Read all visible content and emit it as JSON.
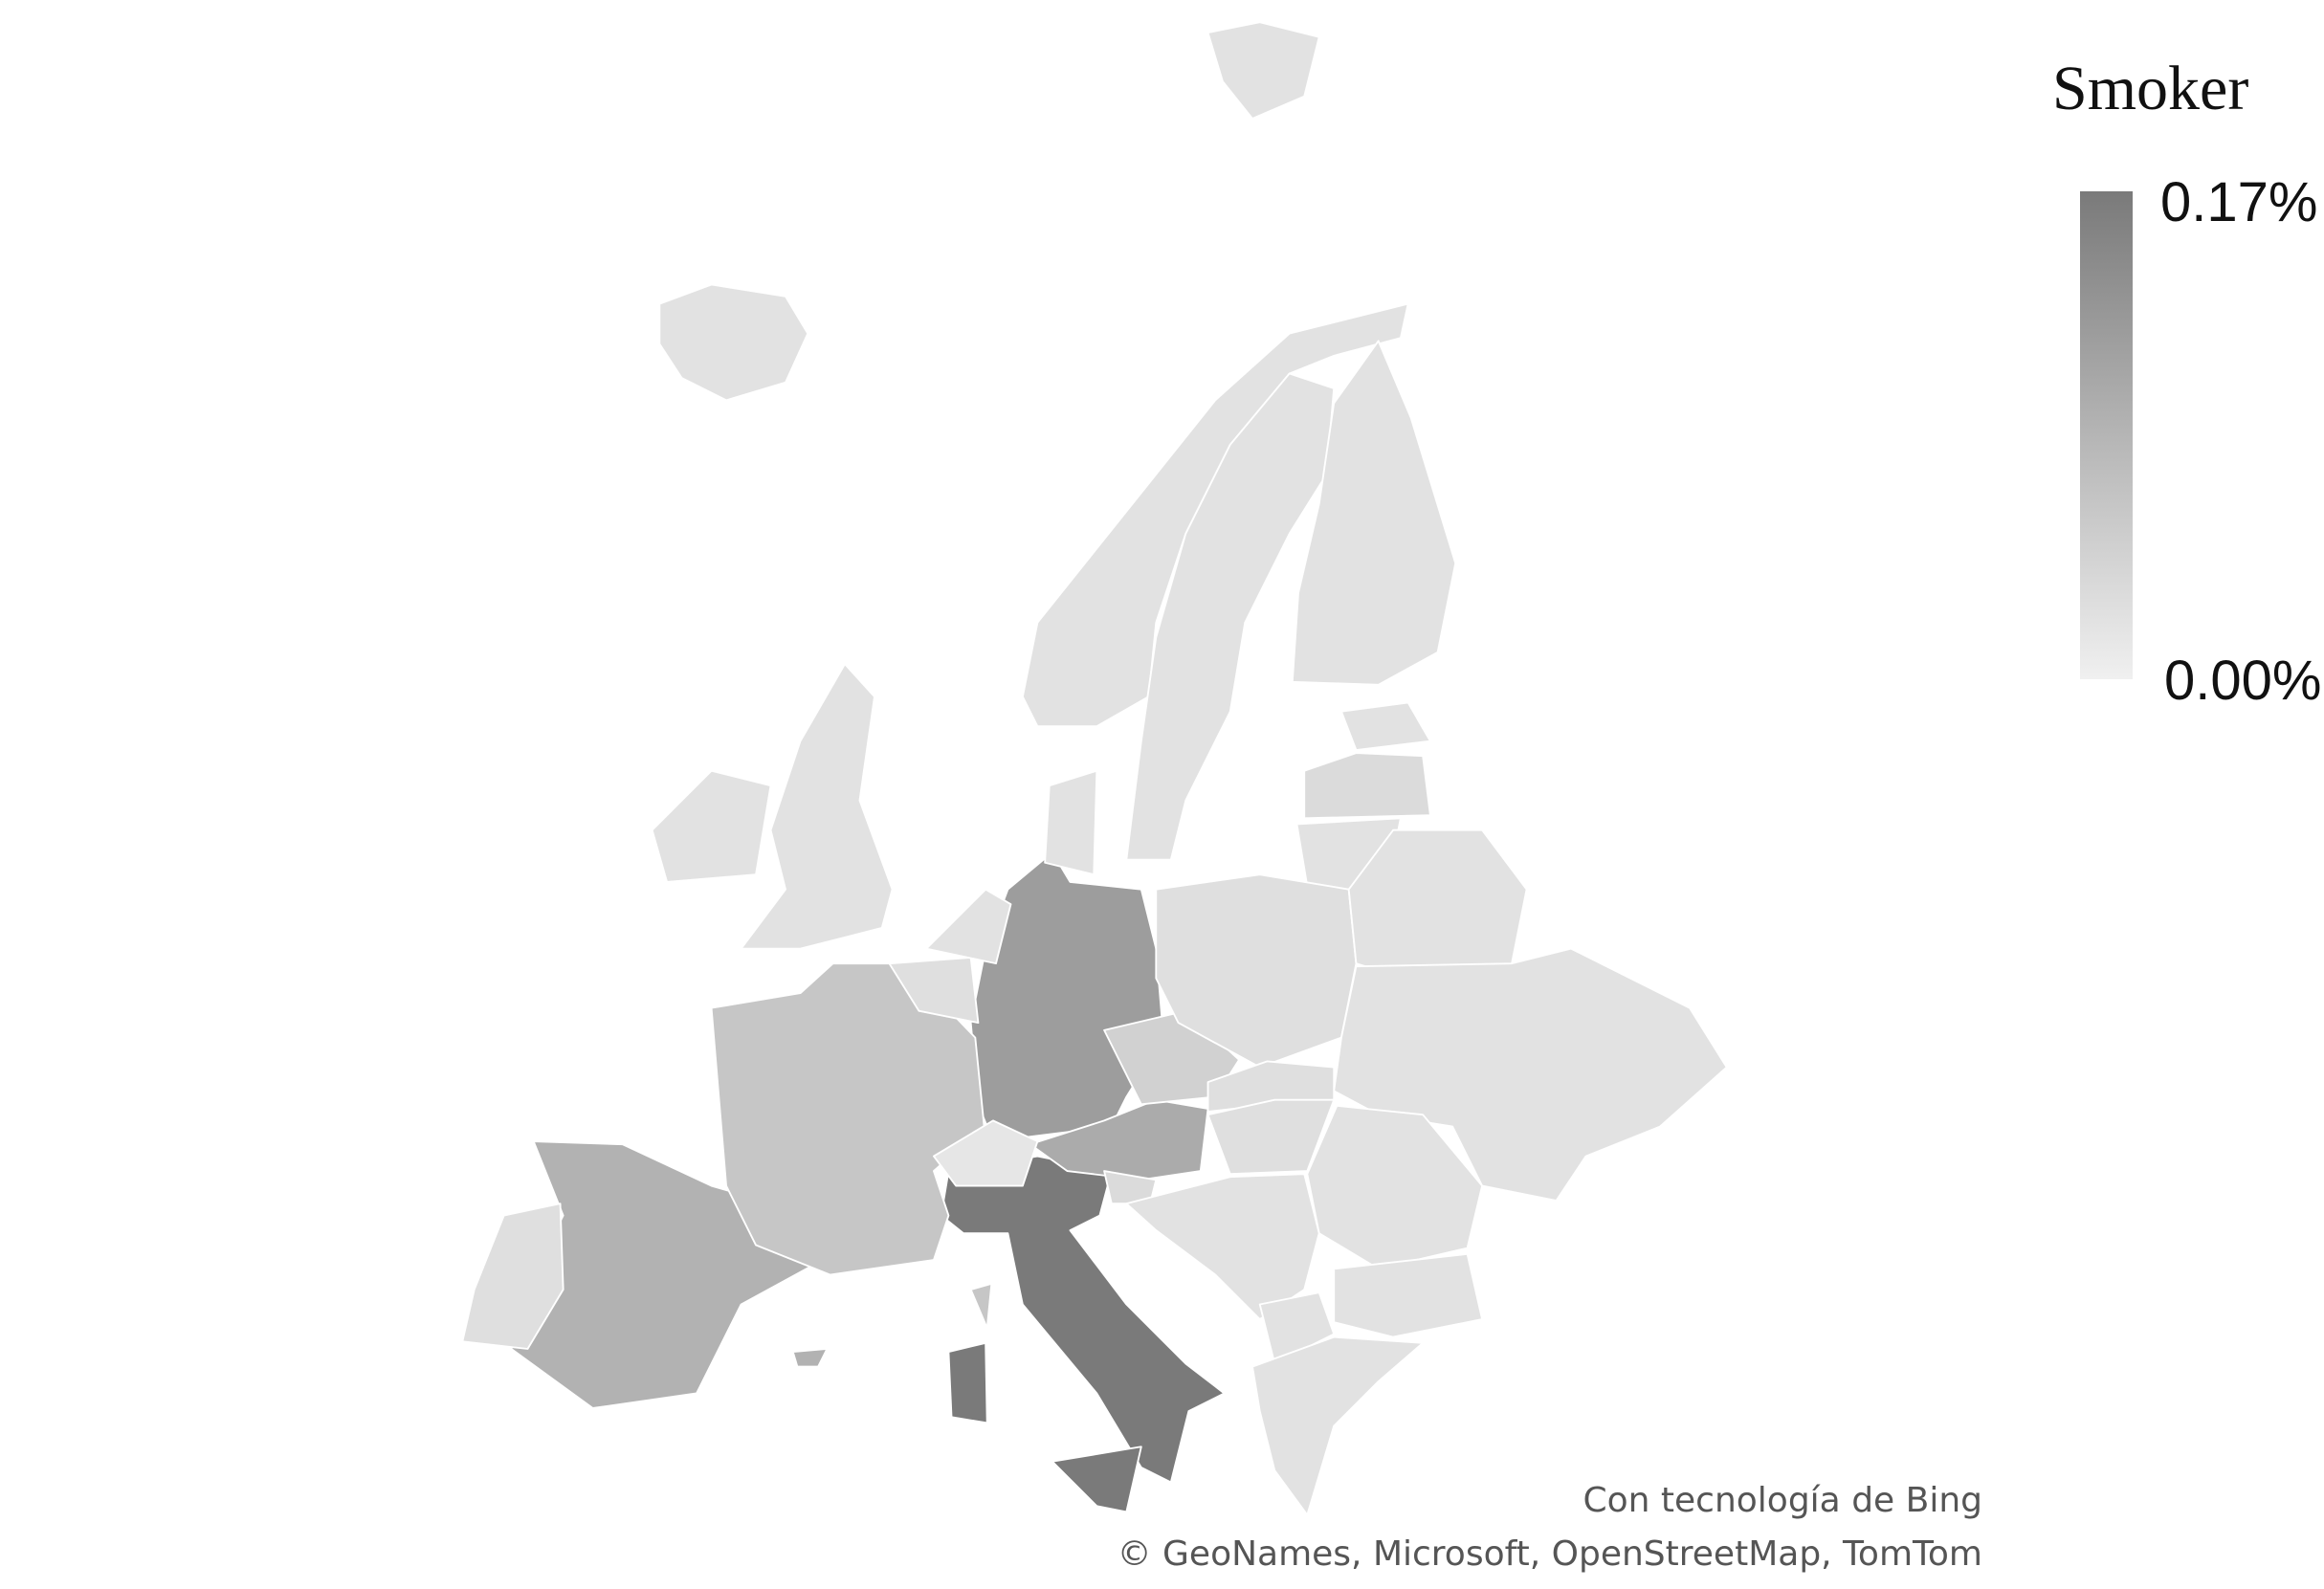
{
  "chart_data": {
    "type": "choropleth",
    "legend": {
      "title": "Smoker",
      "max_label": "0.17%",
      "min_label": "0.00%",
      "range": [
        0,
        0.17
      ],
      "unit": "%",
      "color_max": "#7a7a7a",
      "color_min": "#f0f0f0",
      "placement": "top-right"
    },
    "regions": {
      "italy": 0.17,
      "germany": 0.12,
      "austria": 0.1,
      "spain": 0.09,
      "france": 0.06,
      "czechia": 0.045,
      "portugal": 0.025,
      "switzerland": 0.015,
      "belgium": 0.025,
      "netherlands": 0.02,
      "united_kingdom": 0.02,
      "ireland": 0.02,
      "iceland": 0.02,
      "norway": 0.02,
      "sweden": 0.02,
      "finland": 0.02,
      "denmark": 0.02,
      "estonia": 0.02,
      "latvia": 0.03,
      "lithuania": 0.02,
      "poland": 0.025,
      "belarus": 0.02,
      "ukraine": 0.02,
      "slovakia": 0.025,
      "hungary": 0.025,
      "slovenia": 0.03,
      "romania": 0.02,
      "western_balkans": 0.02,
      "bulgaria": 0.02,
      "north_balkans_south": 0.02,
      "greece": 0.02,
      "svalbard": 0.02
    }
  },
  "attribution": {
    "line1": "Con tecnología de Bing",
    "line2": "© GeoNames, Microsoft, OpenStreetMap, TomTom"
  }
}
